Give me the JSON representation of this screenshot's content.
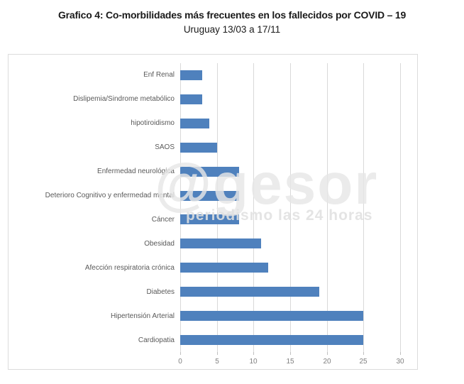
{
  "header": {
    "title": "Grafico 4: Co-morbilidades más frecuentes en los fallecidos por COVID – 19",
    "subtitle": "Uruguay 13/03 a 17/11"
  },
  "watermark": {
    "main": "@gesor",
    "tagline": "periodismo las 24 horas"
  },
  "chart_data": {
    "type": "bar",
    "orientation": "horizontal",
    "title": "Grafico 4: Co-morbilidades más frecuentes en los fallecidos por COVID – 19",
    "subtitle": "Uruguay 13/03 a 17/11",
    "categories": [
      "Enf Renal",
      "Dislipemia/Sindrome metabólico",
      "hipotiroidismo",
      "SAOS",
      "Enfermedad neurológica",
      "Deterioro Cognitivo y enfermedad mental",
      "Cáncer",
      "Obesidad",
      "Afección respiratoria crónica",
      "Diabetes",
      "Hipertensión Arterial",
      "Cardiopatia"
    ],
    "values": [
      3,
      3,
      4,
      5,
      8,
      8,
      8,
      11,
      12,
      19,
      25,
      25
    ],
    "xticks": [
      0,
      5,
      10,
      15,
      20,
      25,
      30
    ],
    "xlim": [
      0,
      30
    ],
    "grid": true,
    "legend": false,
    "bar_color": "#4F81BD"
  },
  "colors": {
    "bar": "#4F81BD",
    "gridline": "#d9d9d9",
    "category_label": "#595959",
    "tick_label": "#7f7f7f",
    "frame_border": "#dcdcdc",
    "title_text": "#1a1a1a"
  }
}
